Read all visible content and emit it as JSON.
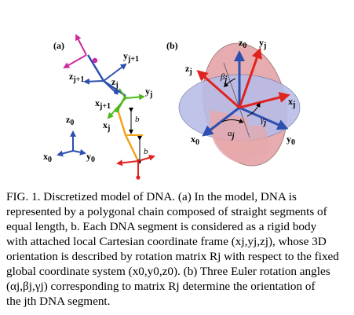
{
  "panel_a": {
    "tag": "(a)",
    "labels": {
      "z_j1": "z",
      "z_j1_sub": "j+1",
      "y_j1": "y",
      "y_j1_sub": "j+1",
      "x_j1": "x",
      "x_j1_sub": "j+1",
      "z_j": "z",
      "z_j_sub": "j",
      "y_j": "y",
      "y_j_sub": "j",
      "x_j": "x",
      "x_j_sub": "j",
      "b1": "b",
      "b2": "b",
      "z0": "z",
      "z0_sub": "0",
      "x0": "x",
      "x0_sub": "0",
      "y0": "y",
      "y0_sub": "0"
    }
  },
  "panel_b": {
    "tag": "(b)",
    "labels": {
      "z0": "z",
      "z0_sub": "0",
      "yj": "y",
      "yj_sub": "j",
      "zj": "z",
      "zj_sub": "j",
      "beta": "β",
      "beta_sub": "j",
      "xj": "x",
      "xj_sub": "j",
      "gamma": "γ",
      "gamma_sub": "j",
      "alpha": "α",
      "alpha_sub": "j",
      "x0": "x",
      "x0_sub": "0",
      "y0": "y",
      "y0_sub": "0"
    }
  },
  "caption": {
    "lines": [
      "FIG. 1.  Discretized model of DNA. (a) In the model, DNA is",
      "represented by a polygonal chain composed of straight segments of",
      "equal length, b. Each DNA segment is considered as a rigid body",
      "with attached local Cartesian coordinate frame (xj,yj,zj), whose 3D",
      "orientation is described by rotation matrix Rj with respect to the fixed",
      "global coordinate system (x0,y0,z0). (b) Three Euler rotation angles",
      "(αj,βj,γj) corresponding to matrix Rj determine the orientation of",
      "the jth DNA segment."
    ]
  },
  "colors": {
    "red": "#e0231f",
    "blue": "#2c4fb0",
    "green": "#4fb81e",
    "orange": "#f2a21a",
    "magenta": "#cc2a9f",
    "disk_blue": "#b8bde8",
    "disk_pink": "#e6a8ab"
  }
}
